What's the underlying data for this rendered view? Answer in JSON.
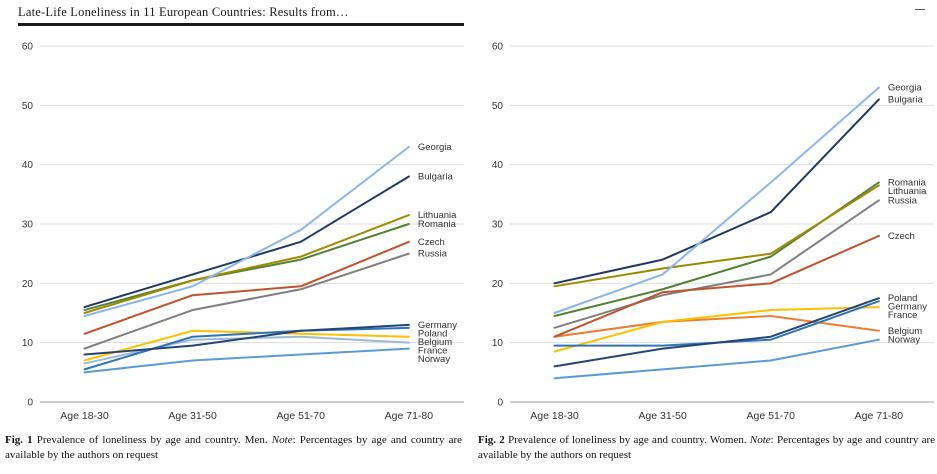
{
  "page": {
    "header_title": "Late-Life Loneliness in 11 European Countries: Results from…"
  },
  "figures": [
    {
      "label": "Fig. 1",
      "body": "Prevalence of loneliness by age and country. Men.",
      "note_label": "Note",
      "note_body": ": Percentages by age and country are available by the authors on request"
    },
    {
      "label": "Fig. 2",
      "body": "Prevalence of loneliness by age and country. Women.",
      "note_label": "Note",
      "note_body": ": Percentages by age and country are available by the authors on request"
    }
  ],
  "chart_data": [
    {
      "type": "line",
      "title": "Prevalence of loneliness by age and country — Men",
      "categories": [
        "Age 18-30",
        "Age 31-50",
        "Age 51-70",
        "Age 71-80"
      ],
      "xlabel": "",
      "ylabel": "",
      "ylim": [
        0,
        60
      ],
      "yticks": [
        0,
        10,
        20,
        30,
        40,
        50,
        60
      ],
      "grid": true,
      "legend_position": "right-end-labels",
      "gridline_color": "#dcdcdc",
      "axis_color": "#b0b0b0",
      "series": [
        {
          "name": "Norway",
          "color": "#5B9BD5",
          "values": [
            5,
            7,
            8,
            9
          ]
        },
        {
          "name": "France",
          "color": "#9CB8D4",
          "values": [
            6.5,
            10.5,
            11,
            10
          ]
        },
        {
          "name": "Belgium",
          "color": "#FFC000",
          "values": [
            7,
            12,
            11.5,
            11
          ]
        },
        {
          "name": "Poland",
          "color": "#2E75B6",
          "values": [
            5.5,
            11,
            12,
            12.5
          ]
        },
        {
          "name": "Germany",
          "color": "#264478",
          "values": [
            8,
            9.5,
            12,
            13
          ]
        },
        {
          "name": "Russia",
          "color": "#7F7F7F",
          "values": [
            9,
            15.5,
            19,
            25
          ]
        },
        {
          "name": "Czech",
          "color": "#C0532B",
          "values": [
            11.5,
            18,
            19.5,
            27
          ]
        },
        {
          "name": "Romania",
          "color": "#538135",
          "values": [
            15.5,
            20.5,
            24,
            30
          ]
        },
        {
          "name": "Lithuania",
          "color": "#9E8A00",
          "values": [
            15,
            20.5,
            24.5,
            31.5
          ]
        },
        {
          "name": "Bulgaria",
          "color": "#1F3864",
          "values": [
            16,
            21.5,
            27,
            38
          ]
        },
        {
          "name": "Georgia",
          "color": "#8AB6E8",
          "values": [
            14.5,
            19.5,
            29,
            43
          ]
        }
      ]
    },
    {
      "type": "line",
      "title": "Prevalence of loneliness by age and country — Women",
      "categories": [
        "Age 18-30",
        "Age 31-50",
        "Age 51-70",
        "Age 71-80"
      ],
      "xlabel": "",
      "ylabel": "",
      "ylim": [
        0,
        60
      ],
      "yticks": [
        0,
        10,
        20,
        30,
        40,
        50,
        60
      ],
      "grid": true,
      "legend_position": "right-end-labels",
      "gridline_color": "#dcdcdc",
      "axis_color": "#b0b0b0",
      "series": [
        {
          "name": "Norway",
          "color": "#5B9BD5",
          "values": [
            4,
            5.5,
            7,
            10.5
          ]
        },
        {
          "name": "Belgium",
          "color": "#ED7D31",
          "values": [
            11,
            13.5,
            14.5,
            12
          ]
        },
        {
          "name": "France",
          "color": "#FFC000",
          "values": [
            8.5,
            13.5,
            15.5,
            16
          ]
        },
        {
          "name": "Germany",
          "color": "#2E75B6",
          "values": [
            9.5,
            9.5,
            10.5,
            17
          ]
        },
        {
          "name": "Poland",
          "color": "#264478",
          "values": [
            6,
            9,
            11,
            17.5
          ]
        },
        {
          "name": "Russia",
          "color": "#7F7F7F",
          "values": [
            12.5,
            18,
            21.5,
            34
          ]
        },
        {
          "name": "Czech",
          "color": "#C0532B",
          "values": [
            11,
            18.5,
            20,
            28
          ]
        },
        {
          "name": "Romania",
          "color": "#538135",
          "values": [
            14.5,
            19,
            24.5,
            37
          ]
        },
        {
          "name": "Lithuania",
          "color": "#9E8A00",
          "values": [
            19.5,
            22.5,
            25,
            36.5
          ]
        },
        {
          "name": "Bulgaria",
          "color": "#1F3864",
          "values": [
            20,
            24,
            32,
            51
          ]
        },
        {
          "name": "Georgia",
          "color": "#8AB6E8",
          "values": [
            15,
            21.5,
            37,
            53
          ]
        }
      ]
    }
  ]
}
